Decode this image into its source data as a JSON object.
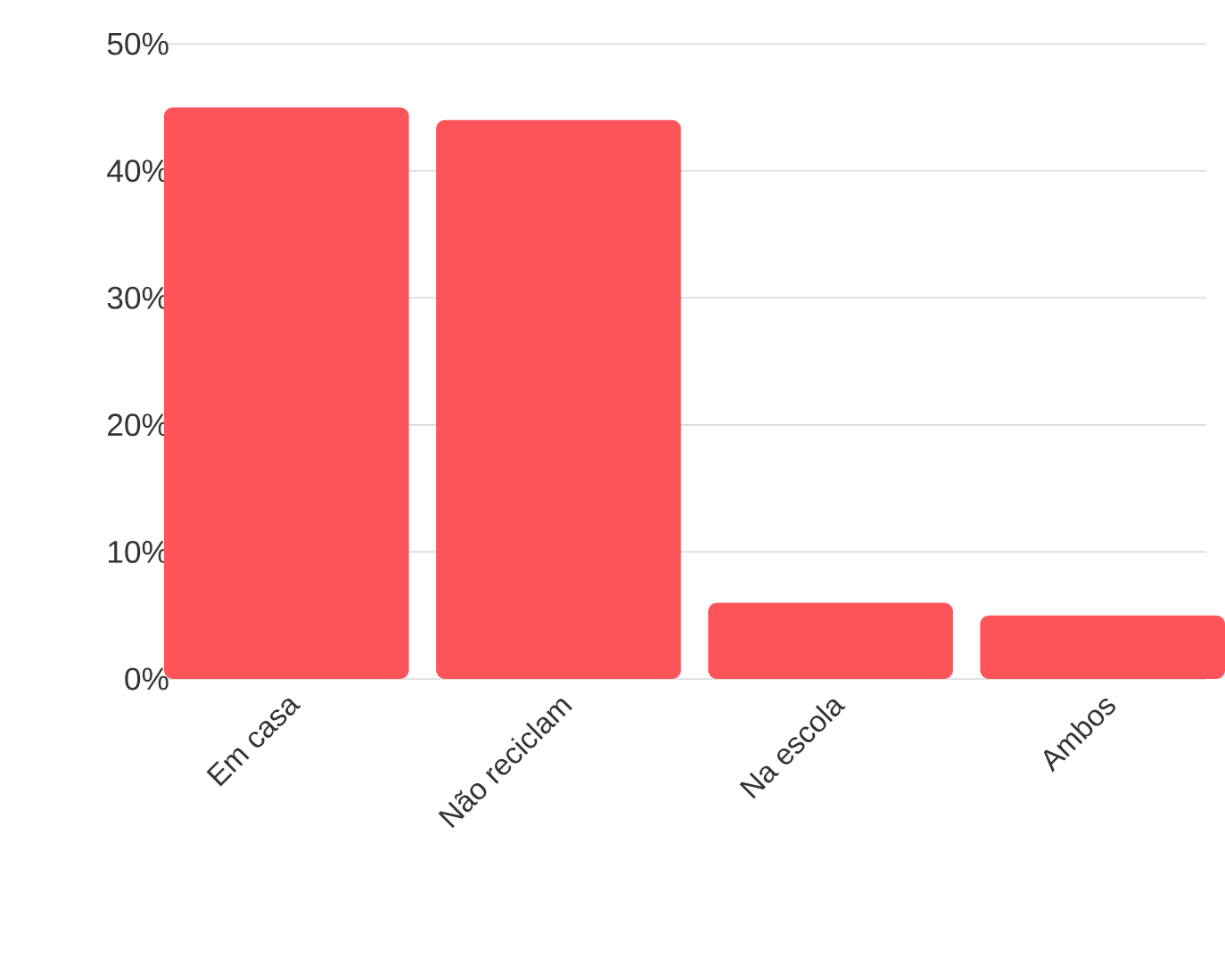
{
  "chart_data": {
    "type": "bar",
    "categories": [
      "Em casa",
      "Não reciclam",
      "Na escola",
      "Ambos"
    ],
    "values": [
      45,
      44,
      6,
      5
    ],
    "color": "#fd5459",
    "ylim": [
      0,
      50
    ],
    "yticks": [
      {
        "value": 0,
        "label": "0%"
      },
      {
        "value": 10,
        "label": "10%"
      },
      {
        "value": 20,
        "label": "20%"
      },
      {
        "value": 30,
        "label": "30%"
      },
      {
        "value": 40,
        "label": "40%"
      },
      {
        "value": 50,
        "label": "50%"
      }
    ],
    "grid": "y"
  }
}
